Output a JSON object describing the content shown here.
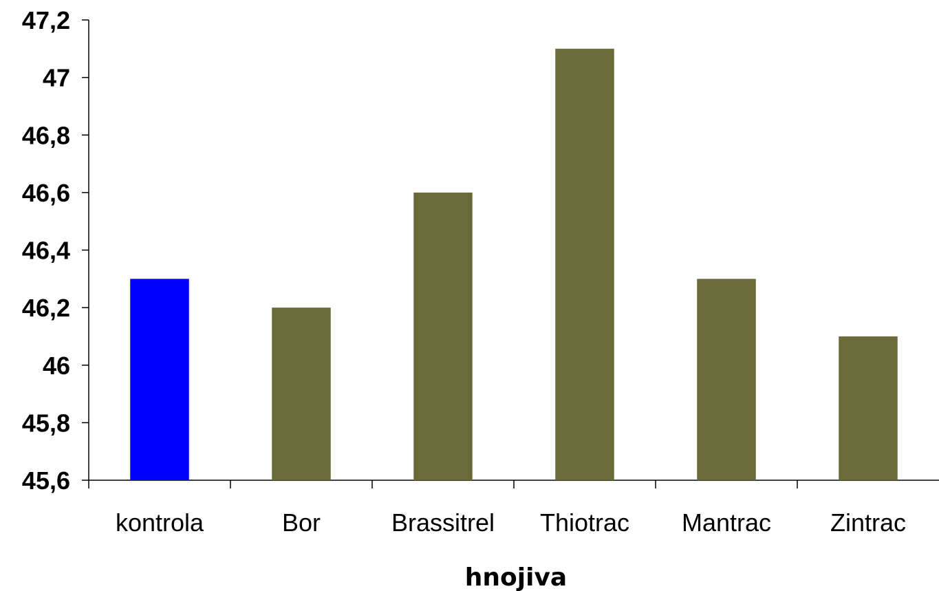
{
  "chart_data": {
    "type": "bar",
    "title": "",
    "xlabel": "hnojiva",
    "ylabel": "",
    "categories": [
      "kontrola",
      "Bor",
      "Brassitrel",
      "Thiotrac",
      "Mantrac",
      "Zintrac"
    ],
    "values": [
      46.3,
      46.2,
      46.6,
      47.1,
      46.3,
      46.1
    ],
    "ylim": [
      45.6,
      47.2
    ],
    "yticks": [
      45.6,
      45.8,
      46,
      46.2,
      46.4,
      46.6,
      46.8,
      47,
      47.2
    ],
    "ytick_labels": [
      "45,6",
      "45,8",
      "46",
      "46,2",
      "46,4",
      "46,6",
      "46,8",
      "47",
      "47,2"
    ],
    "grid": false,
    "legend": "none",
    "colors": {
      "highlight": "#0000FF",
      "default": "#6B6B3A",
      "axis": "#000000"
    }
  }
}
